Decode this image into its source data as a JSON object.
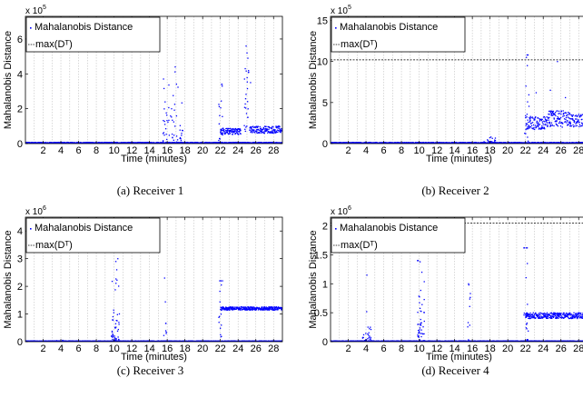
{
  "figure": {
    "common": {
      "ylabel": "Mahalanobis Distance",
      "xlabel": "Time (minutes)",
      "legend": [
        "Mahalanobis Distance",
        "max(Dᵀ)"
      ],
      "xticks": [
        2,
        4,
        6,
        8,
        10,
        12,
        14,
        16,
        18,
        20,
        22,
        24,
        26,
        28
      ],
      "xlim": [
        0,
        29
      ],
      "point_color": "#0000ff",
      "grid_color": "#bfbfbf"
    }
  },
  "chart_data": [
    {
      "type": "scatter",
      "caption": "(a) Receiver 1",
      "exponent_label": "x 10",
      "exponent_power": "5",
      "ylim": [
        0,
        7.3
      ],
      "yticks": [
        0,
        2,
        4,
        6
      ],
      "ytick_labels": [
        "0",
        "2",
        "4",
        "6"
      ],
      "baseline": 0.05,
      "events": [
        {
          "x0": 15.5,
          "x1": 17.8,
          "peak": 4.4,
          "mean": 1.5,
          "n": 60
        },
        {
          "x0": 21.8,
          "x1": 22.3,
          "peak": 3.4,
          "mean": 1.5,
          "n": 16
        }
      ],
      "plateaus": [
        {
          "x0": 22.0,
          "x1": 24.3,
          "level": 0.7,
          "spread": 0.18
        },
        {
          "x0": 24.7,
          "x1": 25.2,
          "level": 2.5,
          "spread": 1.8
        },
        {
          "x0": 25.3,
          "x1": 29,
          "level": 0.8,
          "spread": 0.2
        }
      ],
      "outliers": [
        [
          24.9,
          5.6
        ],
        [
          25.0,
          5.2
        ],
        [
          25.1,
          4.9
        ],
        [
          24.8,
          4.3
        ],
        [
          16.9,
          4.4
        ],
        [
          22.2,
          3.3
        ],
        [
          25.4,
          3.5
        ]
      ],
      "threshold": null
    },
    {
      "type": "scatter",
      "caption": "(b) Receiver 2",
      "exponent_label": "x 10",
      "exponent_power": "5",
      "ylim": [
        0,
        15.5
      ],
      "yticks": [
        0,
        5,
        10,
        15
      ],
      "ytick_labels": [
        "0",
        "5",
        "10",
        "15"
      ],
      "baseline": 0.1,
      "events": [
        {
          "x0": 17.2,
          "x1": 18.6,
          "peak": 1.2,
          "mean": 0.5,
          "n": 25
        },
        {
          "x0": 21.9,
          "x1": 22.4,
          "peak": 10.8,
          "mean": 5,
          "n": 12
        }
      ],
      "plateaus": [
        {
          "x0": 22.0,
          "x1": 24.5,
          "level": 2.5,
          "spread": 0.8
        },
        {
          "x0": 24.5,
          "x1": 27,
          "level": 3.0,
          "spread": 1.0
        },
        {
          "x0": 27,
          "x1": 29,
          "level": 2.8,
          "spread": 0.8
        }
      ],
      "outliers": [
        [
          22.1,
          10.5
        ],
        [
          22.2,
          9.5
        ],
        [
          25.6,
          10.0
        ],
        [
          24.8,
          6.5
        ],
        [
          23.2,
          6.2
        ],
        [
          28.7,
          10.0
        ],
        [
          26.5,
          5.6
        ]
      ],
      "threshold": 10.2
    },
    {
      "type": "scatter",
      "caption": "(c) Receiver 3",
      "exponent_label": "x 10",
      "exponent_power": "6",
      "ylim": [
        0,
        4.5
      ],
      "yticks": [
        0,
        1,
        2,
        3,
        4
      ],
      "ytick_labels": [
        "0",
        "1",
        "2",
        "3",
        "4"
      ],
      "baseline": 0.02,
      "events": [
        {
          "x0": 9.7,
          "x1": 10.6,
          "peak": 3.0,
          "mean": 0.6,
          "n": 45
        },
        {
          "x0": 15.5,
          "x1": 15.9,
          "peak": 2.3,
          "mean": 0.4,
          "n": 8
        },
        {
          "x0": 21.8,
          "x1": 22.3,
          "peak": 2.2,
          "mean": 1.0,
          "n": 15
        }
      ],
      "plateaus": [
        {
          "x0": 22.0,
          "x1": 29,
          "level": 1.2,
          "spread": 0.06
        }
      ],
      "outliers": [
        [
          10.2,
          2.9
        ],
        [
          10.3,
          2.6
        ],
        [
          15.7,
          2.3
        ],
        [
          22.1,
          2.05
        ],
        [
          3.5,
          0.04
        ],
        [
          4.2,
          0.05
        ]
      ],
      "threshold": null
    },
    {
      "type": "scatter",
      "caption": "(d) Receiver 4",
      "exponent_label": "x 10",
      "exponent_power": "6",
      "ylim": [
        0,
        2.15
      ],
      "yticks": [
        0,
        0.5,
        1,
        1.5,
        2
      ],
      "ytick_labels": [
        "0",
        "0.5",
        "1",
        "1.5",
        "2"
      ],
      "baseline": 0.01,
      "events": [
        {
          "x0": 3.6,
          "x1": 4.6,
          "peak": 1.15,
          "mean": 0.12,
          "n": 30
        },
        {
          "x0": 9.8,
          "x1": 10.6,
          "peak": 1.4,
          "mean": 0.4,
          "n": 45
        },
        {
          "x0": 15.4,
          "x1": 15.8,
          "peak": 1.0,
          "mean": 0.35,
          "n": 10
        },
        {
          "x0": 21.8,
          "x1": 22.3,
          "peak": 1.62,
          "mean": 0.6,
          "n": 18
        }
      ],
      "plateaus": [
        {
          "x0": 22.0,
          "x1": 29,
          "level": 0.45,
          "spread": 0.05
        }
      ],
      "outliers": [
        [
          4.1,
          1.15
        ],
        [
          10.1,
          1.38
        ],
        [
          10.3,
          1.2
        ],
        [
          15.6,
          0.98
        ],
        [
          22.1,
          1.62
        ],
        [
          22.2,
          1.35
        ]
      ],
      "threshold": 2.05
    }
  ]
}
